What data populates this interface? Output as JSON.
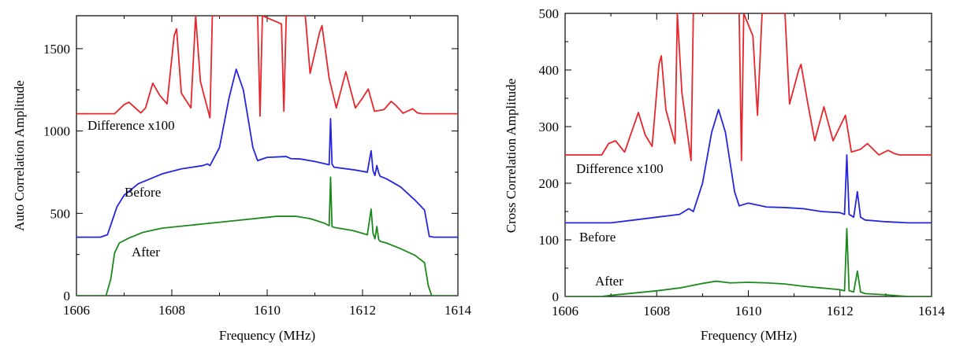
{
  "chart_data": [
    {
      "type": "line",
      "xlabel": "Frequency (MHz)",
      "ylabel": "Auto Correlation Amplitude",
      "xlim": [
        1606,
        1614
      ],
      "ylim": [
        0,
        1700
      ],
      "xticks": [
        1606,
        1608,
        1610,
        1612,
        1614
      ],
      "yticks": [
        0,
        500,
        1000,
        1500
      ],
      "grid": false,
      "series": [
        {
          "color": "#e8262b",
          "x": [
            1606,
            1606.8,
            1607.0,
            1607.1,
            1607.35,
            1607.45,
            1607.6,
            1607.75,
            1607.9,
            1608.05,
            1608.1,
            1608.2,
            1608.4,
            1608.5,
            1608.6,
            1608.8,
            1608.85,
            1608.9,
            1609.8,
            1609.85,
            1609.9,
            1610.3,
            1610.35,
            1610.4,
            1610.55,
            1610.8,
            1610.9,
            1611.1,
            1611.15,
            1611.3,
            1611.45,
            1611.65,
            1611.85,
            1612.0,
            1612.12,
            1612.25,
            1612.45,
            1612.6,
            1612.7,
            1612.85,
            1613.05,
            1613.15,
            1613.25,
            1614
          ],
          "y": [
            1105,
            1105,
            1160,
            1175,
            1110,
            1140,
            1290,
            1215,
            1165,
            1580,
            1620,
            1230,
            1140,
            1700,
            1300,
            1080,
            1700,
            1700,
            1700,
            1090,
            1700,
            1650,
            1120,
            1700,
            1700,
            1700,
            1350,
            1600,
            1640,
            1320,
            1140,
            1360,
            1140,
            1200,
            1255,
            1120,
            1130,
            1180,
            1155,
            1108,
            1135,
            1110,
            1105,
            1105
          ]
        },
        {
          "color": "#2525e0",
          "x": [
            1606,
            1606.5,
            1606.65,
            1606.85,
            1607.0,
            1607.3,
            1607.8,
            1608.2,
            1608.65,
            1608.75,
            1608.8,
            1609.0,
            1609.2,
            1609.35,
            1609.5,
            1609.7,
            1609.8,
            1610.0,
            1610.4,
            1610.5,
            1610.7,
            1611.0,
            1611.3,
            1611.33,
            1611.36,
            1611.4,
            1611.8,
            1612.1,
            1612.18,
            1612.22,
            1612.26,
            1612.3,
            1612.34,
            1612.37,
            1612.5,
            1612.8,
            1613.1,
            1613.3,
            1613.4,
            1613.5,
            1614
          ],
          "y": [
            355,
            355,
            370,
            540,
            610,
            680,
            740,
            770,
            790,
            800,
            790,
            900,
            1200,
            1375,
            1250,
            900,
            820,
            840,
            845,
            832,
            830,
            815,
            795,
            1075,
            800,
            780,
            765,
            750,
            880,
            760,
            730,
            790,
            745,
            725,
            710,
            660,
            580,
            520,
            360,
            355,
            355
          ]
        },
        {
          "color": "#1c8a1c",
          "x": [
            1606,
            1606.62,
            1606.72,
            1606.8,
            1606.9,
            1607.1,
            1607.4,
            1607.8,
            1608.3,
            1608.8,
            1609.3,
            1609.8,
            1610.2,
            1610.6,
            1610.9,
            1611.2,
            1611.3,
            1611.33,
            1611.36,
            1611.4,
            1611.8,
            1612.1,
            1612.18,
            1612.22,
            1612.26,
            1612.3,
            1612.34,
            1612.37,
            1612.5,
            1612.8,
            1613.1,
            1613.3,
            1613.38,
            1613.45,
            1614
          ],
          "y": [
            0,
            0,
            100,
            260,
            320,
            350,
            385,
            410,
            425,
            440,
            455,
            470,
            482,
            482,
            468,
            440,
            425,
            720,
            420,
            415,
            395,
            370,
            525,
            380,
            345,
            420,
            340,
            330,
            320,
            285,
            245,
            200,
            60,
            0,
            0
          ]
        }
      ],
      "annotations": [
        "Difference x100",
        "Before",
        "After"
      ]
    },
    {
      "type": "line",
      "xlabel": "Frequency (MHz)",
      "ylabel": "Cross Correlation Amplitude",
      "xlim": [
        1606,
        1614
      ],
      "ylim": [
        0,
        500
      ],
      "xticks": [
        1606,
        1608,
        1610,
        1612,
        1614
      ],
      "yticks": [
        0,
        100,
        200,
        300,
        400,
        500
      ],
      "grid": false,
      "series": [
        {
          "color": "#e8262b",
          "x": [
            1606,
            1606.8,
            1606.95,
            1607.1,
            1607.3,
            1607.45,
            1607.6,
            1607.75,
            1607.9,
            1608.05,
            1608.1,
            1608.2,
            1608.4,
            1608.45,
            1608.55,
            1608.75,
            1608.8,
            1608.85,
            1609.8,
            1609.85,
            1609.9,
            1610.1,
            1610.2,
            1610.3,
            1610.8,
            1610.9,
            1611.1,
            1611.15,
            1611.3,
            1611.45,
            1611.65,
            1611.85,
            1612.0,
            1612.12,
            1612.25,
            1612.45,
            1612.6,
            1612.7,
            1612.85,
            1613.05,
            1613.2,
            1613.3,
            1614
          ],
          "y": [
            250,
            250,
            270,
            275,
            255,
            290,
            325,
            285,
            265,
            410,
            425,
            330,
            270,
            500,
            360,
            240,
            500,
            500,
            500,
            240,
            500,
            460,
            320,
            500,
            500,
            340,
            400,
            410,
            340,
            275,
            335,
            275,
            300,
            320,
            255,
            260,
            270,
            262,
            250,
            258,
            252,
            250,
            250
          ]
        },
        {
          "color": "#2525e0",
          "x": [
            1606,
            1607.0,
            1607.5,
            1608.0,
            1608.5,
            1608.7,
            1608.8,
            1609.0,
            1609.2,
            1609.35,
            1609.5,
            1609.7,
            1609.8,
            1610.0,
            1610.4,
            1610.8,
            1611.2,
            1611.6,
            1612.0,
            1612.1,
            1612.15,
            1612.2,
            1612.3,
            1612.38,
            1612.45,
            1612.55,
            1613.0,
            1613.5,
            1614
          ],
          "y": [
            130,
            130,
            135,
            140,
            145,
            155,
            150,
            200,
            290,
            330,
            290,
            185,
            160,
            165,
            158,
            157,
            155,
            150,
            148,
            145,
            250,
            145,
            140,
            185,
            140,
            135,
            132,
            130,
            130
          ]
        },
        {
          "color": "#1c8a1c",
          "x": [
            1606,
            1606.8,
            1607.0,
            1607.5,
            1608.0,
            1608.5,
            1609.0,
            1609.3,
            1609.6,
            1610.0,
            1610.4,
            1610.8,
            1611.2,
            1611.6,
            1612.0,
            1612.1,
            1612.15,
            1612.2,
            1612.3,
            1612.38,
            1612.45,
            1612.55,
            1613.0,
            1613.3,
            1613.5,
            1614
          ],
          "y": [
            0,
            0,
            2,
            6,
            10,
            15,
            23,
            27,
            24,
            25,
            24,
            22,
            18,
            15,
            12,
            10,
            120,
            10,
            8,
            45,
            8,
            5,
            3,
            1,
            0,
            0
          ]
        }
      ],
      "annotations": [
        "Difference x100",
        "Before",
        "After"
      ]
    }
  ]
}
